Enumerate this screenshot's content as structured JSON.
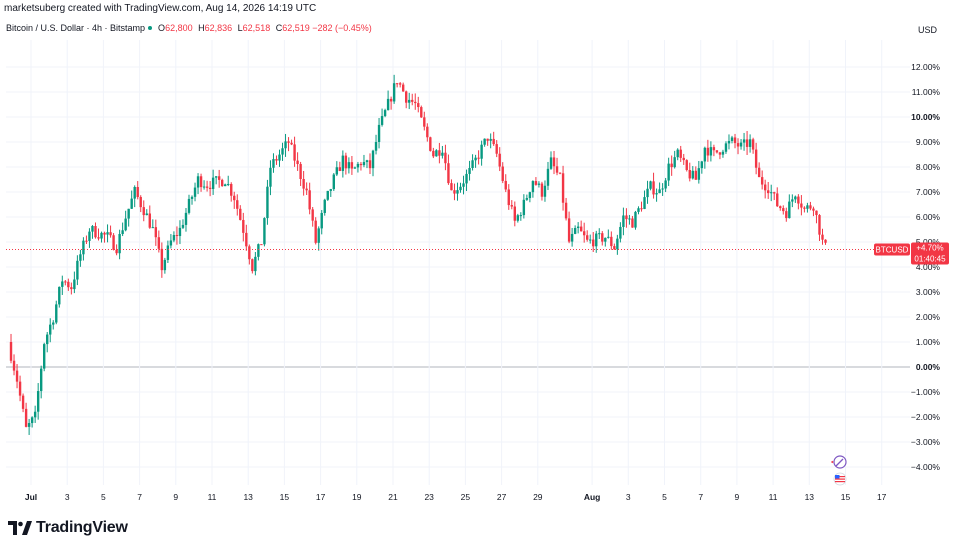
{
  "header": {
    "attribution": "marketsuberg created with TradingView.com, Aug 14, 2026 14:19 UTC",
    "symbol_label": "Bitcoin / U.S. Dollar · 4h · Bitstamp",
    "ohlc": [
      {
        "key": "O",
        "value": "62,800"
      },
      {
        "key": "H",
        "value": "62,836"
      },
      {
        "key": "L",
        "value": "62,518"
      },
      {
        "key": "C",
        "value": "62,519"
      }
    ],
    "change": "−282 (−0.45%)",
    "currency": "USD"
  },
  "price_tag": {
    "ticker": "BTCUSD",
    "change": "+4.70%",
    "countdown": "01:40:45"
  },
  "colors": {
    "up": "#089981",
    "down": "#f23645",
    "grid": "#f0f3fa"
  },
  "footer": {
    "brand": "TradingView"
  },
  "chart_data": {
    "type": "candlestick",
    "scale": "percent",
    "ylim": [
      -4.9,
      12.9
    ],
    "y_ticks": [
      "12.00%",
      "11.00%",
      "10.00%",
      "9.00%",
      "8.00%",
      "7.00%",
      "6.00%",
      "5.00%",
      "4.00%",
      "3.00%",
      "2.00%",
      "1.00%",
      "0.00%",
      "−1.00%",
      "−2.00%",
      "−3.00%",
      "−4.00%"
    ],
    "x_ticks": [
      "Jul",
      "3",
      "5",
      "7",
      "9",
      "11",
      "13",
      "15",
      "17",
      "19",
      "21",
      "23",
      "25",
      "27",
      "29",
      "Aug",
      "3",
      "5",
      "7",
      "9",
      "11",
      "13",
      "15",
      "17"
    ],
    "x_bold": [
      "Jul",
      "Aug"
    ],
    "last_change_pct": 4.7,
    "series": [
      {
        "name": "BTCUSD",
        "anchors": [
          [
            0.0,
            1.0
          ],
          [
            0.5,
            -0.5
          ],
          [
            1.0,
            -2.5
          ],
          [
            1.5,
            -2.0
          ],
          [
            2.0,
            1.0
          ],
          [
            2.5,
            2.0
          ],
          [
            3.0,
            3.5
          ],
          [
            3.5,
            3.2
          ],
          [
            4.0,
            4.5
          ],
          [
            4.5,
            5.5
          ],
          [
            5.5,
            5.2
          ],
          [
            6.0,
            4.8
          ],
          [
            6.5,
            6.0
          ],
          [
            7.0,
            7.0
          ],
          [
            7.5,
            6.3
          ],
          [
            8.0,
            5.5
          ],
          [
            8.5,
            4.0
          ],
          [
            9.0,
            5.0
          ],
          [
            9.5,
            5.5
          ],
          [
            10.0,
            6.5
          ],
          [
            10.5,
            7.5
          ],
          [
            11.0,
            7.3
          ],
          [
            12.0,
            7.5
          ],
          [
            12.5,
            6.8
          ],
          [
            13.0,
            5.5
          ],
          [
            13.5,
            4.0
          ],
          [
            14.0,
            5.0
          ],
          [
            14.5,
            8.0
          ],
          [
            15.0,
            8.5
          ],
          [
            15.5,
            9.0
          ],
          [
            16.0,
            8.0
          ],
          [
            16.5,
            7.0
          ],
          [
            17.0,
            5.0
          ],
          [
            17.5,
            6.5
          ],
          [
            18.0,
            7.5
          ],
          [
            18.5,
            8.3
          ],
          [
            19.0,
            7.8
          ],
          [
            19.5,
            8.2
          ],
          [
            20.0,
            8.0
          ],
          [
            20.5,
            9.5
          ],
          [
            21.0,
            10.5
          ],
          [
            21.5,
            11.5
          ],
          [
            22.0,
            10.8
          ],
          [
            22.5,
            10.5
          ],
          [
            23.0,
            9.5
          ],
          [
            23.5,
            8.5
          ],
          [
            24.0,
            8.8
          ],
          [
            24.5,
            7.0
          ],
          [
            25.0,
            7.3
          ],
          [
            25.5,
            7.8
          ],
          [
            26.0,
            8.5
          ],
          [
            26.5,
            9.2
          ],
          [
            27.0,
            8.5
          ],
          [
            27.5,
            7.0
          ],
          [
            28.0,
            5.8
          ],
          [
            28.5,
            6.5
          ],
          [
            29.0,
            7.5
          ],
          [
            29.5,
            7.0
          ],
          [
            30.0,
            8.2
          ],
          [
            30.5,
            7.5
          ],
          [
            31.0,
            5.0
          ],
          [
            31.5,
            5.5
          ],
          [
            32.0,
            5.0
          ],
          [
            33.0,
            5.2
          ],
          [
            33.5,
            4.8
          ],
          [
            34.0,
            6.0
          ],
          [
            34.5,
            5.8
          ],
          [
            35.0,
            6.5
          ],
          [
            35.5,
            7.2
          ],
          [
            36.0,
            7.0
          ],
          [
            36.5,
            8.0
          ],
          [
            37.0,
            8.5
          ],
          [
            37.5,
            7.8
          ],
          [
            38.0,
            7.5
          ],
          [
            38.5,
            8.8
          ],
          [
            39.0,
            8.5
          ],
          [
            39.5,
            8.8
          ],
          [
            40.0,
            9.0
          ],
          [
            40.5,
            8.8
          ],
          [
            41.0,
            9.0
          ],
          [
            41.5,
            7.5
          ],
          [
            42.0,
            7.2
          ],
          [
            42.5,
            6.5
          ],
          [
            43.0,
            6.2
          ],
          [
            43.5,
            7.0
          ],
          [
            44.0,
            6.3
          ],
          [
            44.5,
            6.5
          ],
          [
            45.0,
            5.0
          ],
          [
            45.2,
            4.7
          ]
        ]
      }
    ]
  }
}
